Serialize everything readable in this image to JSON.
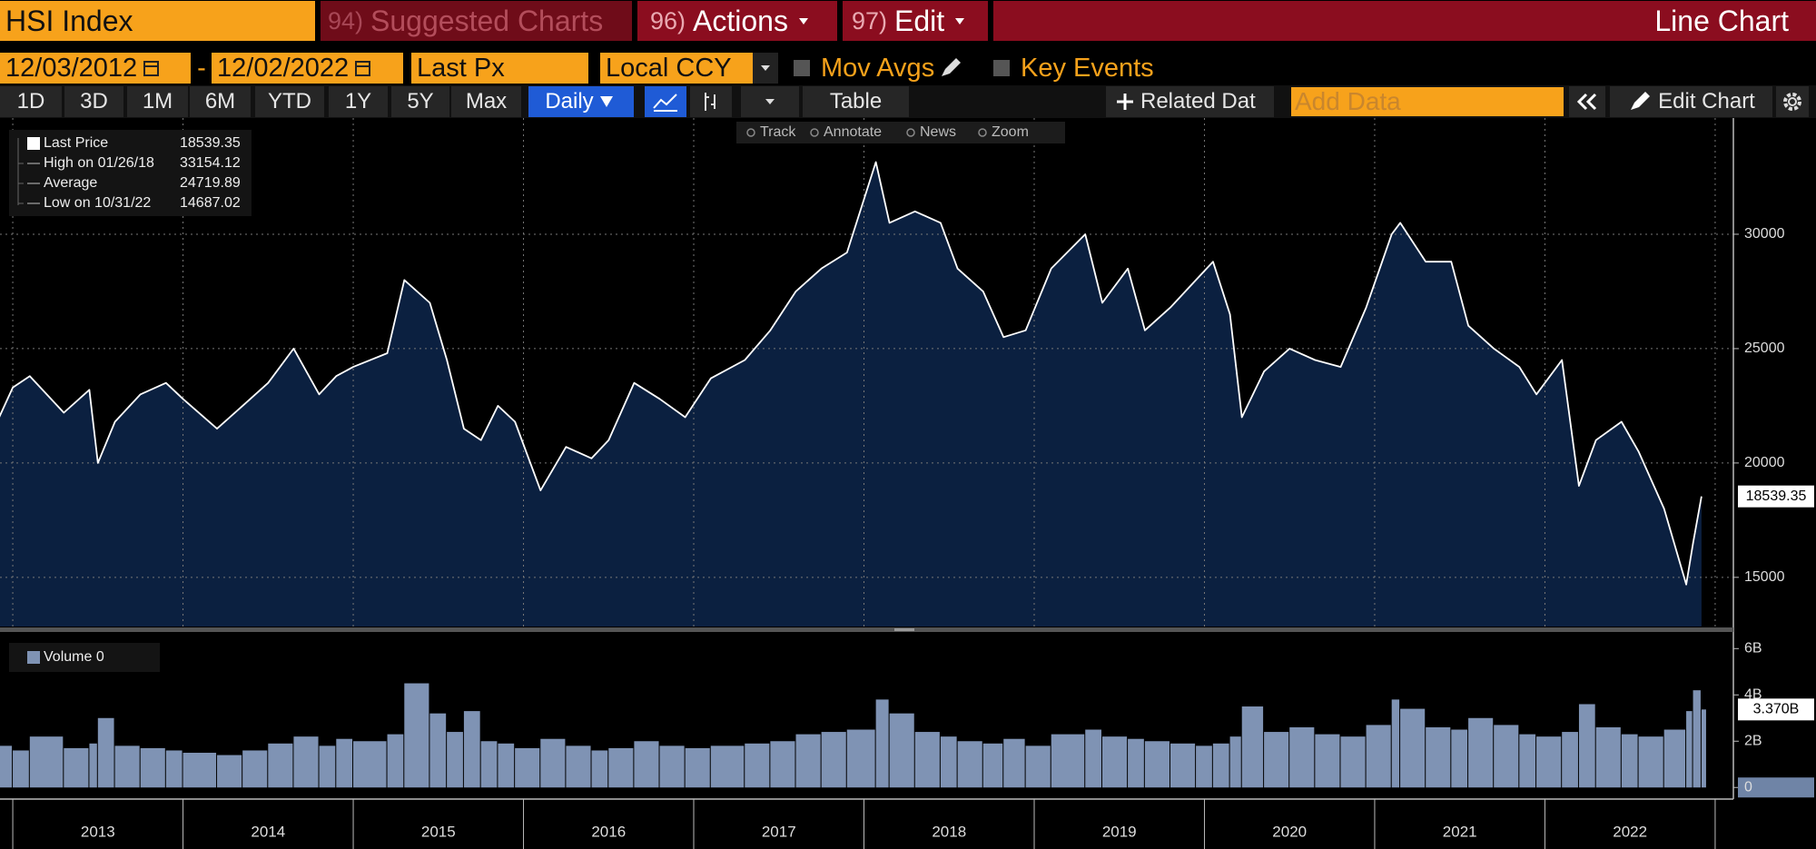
{
  "toolbar": {
    "ticker": "HSI Index",
    "suggested": {
      "num": "94)",
      "label": "Suggested Charts"
    },
    "actions": {
      "num": "96)",
      "label": "Actions"
    },
    "edit": {
      "num": "97)",
      "label": "Edit"
    },
    "view": "Line Chart"
  },
  "controls": {
    "start": "12/03/2012",
    "dash": "-",
    "end": "12/02/2022",
    "field": "Last Px",
    "currency": "Local CCY",
    "mov_avgs": "Mov Avgs",
    "key_events": "Key Events"
  },
  "periods": [
    "1D",
    "3D",
    "1M",
    "6M",
    "YTD",
    "1Y",
    "5Y",
    "Max"
  ],
  "frequency": "Daily",
  "table": "Table",
  "related": "Related Dat",
  "add_data": "Add Data",
  "edit_chart": "Edit Chart",
  "chart_tools": [
    "Track",
    "Annotate",
    "News",
    "Zoom"
  ],
  "legend": [
    {
      "label": "Last Price",
      "value": "18539.35"
    },
    {
      "label": "High on 01/26/18",
      "value": "33154.12"
    },
    {
      "label": "Average",
      "value": "24719.89"
    },
    {
      "label": "Low on 10/31/22",
      "value": "14687.02"
    }
  ],
  "chart_data": [
    {
      "type": "line",
      "fill": "#0b2040",
      "color": "#ffffff",
      "x": [
        2012.92,
        2013.0,
        2013.1,
        2013.3,
        2013.45,
        2013.5,
        2013.6,
        2013.75,
        2013.9,
        2014.0,
        2014.2,
        2014.35,
        2014.5,
        2014.65,
        2014.8,
        2014.9,
        2015.0,
        2015.2,
        2015.3,
        2015.45,
        2015.55,
        2015.65,
        2015.75,
        2015.85,
        2015.95,
        2016.1,
        2016.25,
        2016.4,
        2016.5,
        2016.65,
        2016.8,
        2016.95,
        2017.1,
        2017.3,
        2017.45,
        2017.6,
        2017.75,
        2017.9,
        2018.07,
        2018.15,
        2018.3,
        2018.45,
        2018.55,
        2018.7,
        2018.82,
        2018.95,
        2019.1,
        2019.3,
        2019.4,
        2019.55,
        2019.65,
        2019.8,
        2019.95,
        2020.05,
        2020.15,
        2020.22,
        2020.35,
        2020.5,
        2020.65,
        2020.8,
        2020.95,
        2021.1,
        2021.15,
        2021.3,
        2021.45,
        2021.55,
        2021.7,
        2021.85,
        2021.95,
        2022.1,
        2022.2,
        2022.3,
        2022.45,
        2022.55,
        2022.7,
        2022.83,
        2022.87,
        2022.92
      ],
      "series": [
        {
          "name": "Last Price",
          "color": "#ffffff",
          "values": [
            22000,
            23300,
            23800,
            22200,
            23200,
            20000,
            21800,
            23000,
            23500,
            22800,
            21500,
            22500,
            23500,
            25000,
            23000,
            23800,
            24200,
            24800,
            28000,
            27000,
            24500,
            21500,
            21000,
            22500,
            21800,
            18800,
            20700,
            20200,
            21000,
            23500,
            22800,
            22000,
            23700,
            24500,
            25800,
            27500,
            28500,
            29200,
            33154.12,
            30500,
            31000,
            30500,
            28500,
            27500,
            25500,
            25800,
            28500,
            30000,
            27000,
            28500,
            25800,
            26800,
            28000,
            28800,
            26500,
            22000,
            24000,
            25000,
            24500,
            24200,
            26800,
            30000,
            30500,
            28800,
            28800,
            26000,
            25000,
            24200,
            23000,
            24500,
            19000,
            21000,
            21800,
            20500,
            18000,
            14687.02,
            16500,
            18539.35
          ]
        }
      ],
      "xlim": [
        2012.925,
        2023.107
      ],
      "xticks": [
        {
          "value": 2013.5,
          "label": "2013"
        },
        {
          "value": 2014.5,
          "label": "2014"
        },
        {
          "value": 2015.5,
          "label": "2015"
        },
        {
          "value": 2016.5,
          "label": "2016"
        },
        {
          "value": 2017.5,
          "label": "2017"
        },
        {
          "value": 2018.5,
          "label": "2018"
        },
        {
          "value": 2019.5,
          "label": "2019"
        },
        {
          "value": 2020.5,
          "label": "2020"
        },
        {
          "value": 2021.5,
          "label": "2021"
        },
        {
          "value": 2022.5,
          "label": "2022"
        }
      ],
      "xgrid": [
        2013,
        2014,
        2015,
        2016,
        2017,
        2018,
        2019,
        2020,
        2021,
        2022,
        2023
      ],
      "ylim": [
        12850,
        35080
      ],
      "yticks": [
        15000,
        20000,
        25000,
        30000
      ],
      "grid": true
    },
    {
      "type": "bar",
      "legend": "Volume 0",
      "color": "#7f93b4",
      "x": [
        2012.92,
        2013.0,
        2013.1,
        2013.3,
        2013.45,
        2013.5,
        2013.6,
        2013.75,
        2013.9,
        2014.0,
        2014.2,
        2014.35,
        2014.5,
        2014.65,
        2014.8,
        2014.9,
        2015.0,
        2015.2,
        2015.3,
        2015.45,
        2015.55,
        2015.65,
        2015.75,
        2015.85,
        2015.95,
        2016.1,
        2016.25,
        2016.4,
        2016.5,
        2016.65,
        2016.8,
        2016.95,
        2017.1,
        2017.3,
        2017.45,
        2017.6,
        2017.75,
        2017.9,
        2018.07,
        2018.15,
        2018.3,
        2018.45,
        2018.55,
        2018.7,
        2018.82,
        2018.95,
        2019.1,
        2019.3,
        2019.4,
        2019.55,
        2019.65,
        2019.8,
        2019.95,
        2020.05,
        2020.15,
        2020.22,
        2020.35,
        2020.5,
        2020.65,
        2020.8,
        2020.95,
        2021.1,
        2021.15,
        2021.3,
        2021.45,
        2021.55,
        2021.7,
        2021.85,
        2021.95,
        2022.1,
        2022.2,
        2022.3,
        2022.45,
        2022.55,
        2022.7,
        2022.83,
        2022.87,
        2022.92
      ],
      "values": [
        1.8,
        1.6,
        2.2,
        1.7,
        1.9,
        3.0,
        1.8,
        1.7,
        1.6,
        1.5,
        1.4,
        1.6,
        1.9,
        2.2,
        1.8,
        2.1,
        2.0,
        2.3,
        4.5,
        3.2,
        2.4,
        3.3,
        2.0,
        1.9,
        1.7,
        2.1,
        1.8,
        1.6,
        1.7,
        2.0,
        1.8,
        1.7,
        1.8,
        1.9,
        2.0,
        2.3,
        2.4,
        2.5,
        3.8,
        3.2,
        2.4,
        2.2,
        2.0,
        1.9,
        2.1,
        1.8,
        2.3,
        2.5,
        2.2,
        2.1,
        2.0,
        1.9,
        1.8,
        1.9,
        2.2,
        3.5,
        2.4,
        2.6,
        2.3,
        2.2,
        2.7,
        3.8,
        3.4,
        2.6,
        2.5,
        3.0,
        2.7,
        2.3,
        2.2,
        2.4,
        3.6,
        2.6,
        2.3,
        2.2,
        2.5,
        3.3,
        4.2,
        3.37
      ],
      "last_label": "3.370B",
      "xlim": [
        2012.925,
        2023.107
      ],
      "ylim": [
        -0.5,
        6.6
      ],
      "yticks": [
        0,
        {
          "value": 2,
          "label": "2B"
        },
        {
          "value": 4,
          "label": "4B"
        },
        {
          "value": 6,
          "label": "6B"
        }
      ]
    }
  ]
}
